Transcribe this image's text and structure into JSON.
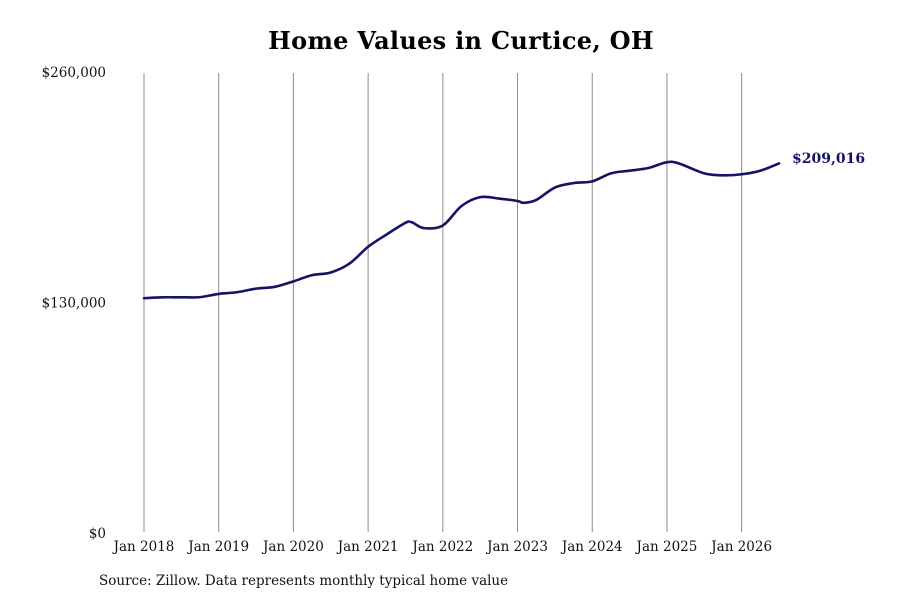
{
  "chart_data": {
    "type": "line",
    "title": "Home Values in Curtice, OH",
    "xlabel": "",
    "ylabel": "",
    "ylim": [
      0,
      260000
    ],
    "y_ticks": [
      {
        "value": 0,
        "label": "$0"
      },
      {
        "value": 130000,
        "label": "$130,000"
      },
      {
        "value": 260000,
        "label": "$260,000"
      }
    ],
    "x_range": [
      "2018-01",
      "2026-07"
    ],
    "x_ticks": [
      {
        "date": "2018-01",
        "label": "Jan 2018"
      },
      {
        "date": "2019-01",
        "label": "Jan 2019"
      },
      {
        "date": "2020-01",
        "label": "Jan 2020"
      },
      {
        "date": "2021-01",
        "label": "Jan 2021"
      },
      {
        "date": "2022-01",
        "label": "Jan 2022"
      },
      {
        "date": "2023-01",
        "label": "Jan 2023"
      },
      {
        "date": "2024-01",
        "label": "Jan 2024"
      },
      {
        "date": "2025-01",
        "label": "Jan 2025"
      },
      {
        "date": "2026-01",
        "label": "Jan 2026"
      }
    ],
    "grid": "vertical",
    "series": [
      {
        "color": "#141464",
        "end_label": "$209,016",
        "points": [
          {
            "date": "2018-01",
            "value": 133000
          },
          {
            "date": "2018-04",
            "value": 133500
          },
          {
            "date": "2018-07",
            "value": 133500
          },
          {
            "date": "2018-10",
            "value": 133600
          },
          {
            "date": "2019-01",
            "value": 135400
          },
          {
            "date": "2019-04",
            "value": 136400
          },
          {
            "date": "2019-07",
            "value": 138400
          },
          {
            "date": "2019-10",
            "value": 139400
          },
          {
            "date": "2020-01",
            "value": 142500
          },
          {
            "date": "2020-04",
            "value": 146000
          },
          {
            "date": "2020-07",
            "value": 147500
          },
          {
            "date": "2020-10",
            "value": 152500
          },
          {
            "date": "2021-01",
            "value": 162000
          },
          {
            "date": "2021-04",
            "value": 169000
          },
          {
            "date": "2021-07",
            "value": 175500
          },
          {
            "date": "2021-08",
            "value": 175800
          },
          {
            "date": "2021-10",
            "value": 172500
          },
          {
            "date": "2022-01",
            "value": 174000
          },
          {
            "date": "2022-04",
            "value": 185000
          },
          {
            "date": "2022-07",
            "value": 190000
          },
          {
            "date": "2022-10",
            "value": 189200
          },
          {
            "date": "2023-01",
            "value": 187800
          },
          {
            "date": "2023-02",
            "value": 186800
          },
          {
            "date": "2023-04",
            "value": 188400
          },
          {
            "date": "2023-07",
            "value": 195400
          },
          {
            "date": "2023-10",
            "value": 197900
          },
          {
            "date": "2024-01",
            "value": 198900
          },
          {
            "date": "2024-04",
            "value": 203400
          },
          {
            "date": "2024-07",
            "value": 204900
          },
          {
            "date": "2024-10",
            "value": 206400
          },
          {
            "date": "2025-01",
            "value": 209700
          },
          {
            "date": "2025-03",
            "value": 208900
          },
          {
            "date": "2025-07",
            "value": 203400
          },
          {
            "date": "2025-10",
            "value": 202300
          },
          {
            "date": "2026-01",
            "value": 202900
          },
          {
            "date": "2026-04",
            "value": 204900
          },
          {
            "date": "2026-07",
            "value": 209016
          }
        ]
      }
    ]
  },
  "source_note": "Source: Zillow. Data represents monthly typical home value"
}
